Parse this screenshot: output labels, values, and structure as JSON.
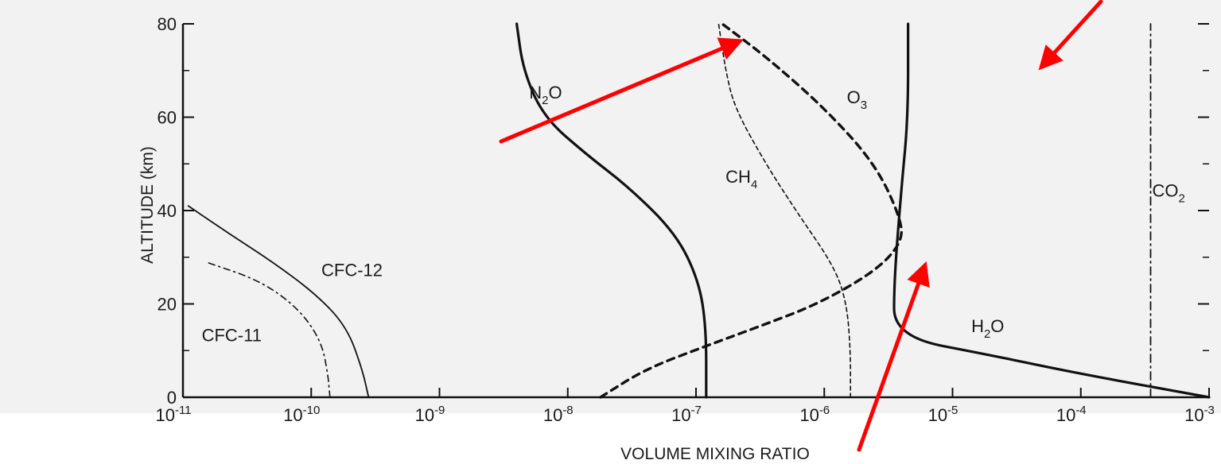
{
  "chart_data": {
    "type": "line",
    "xlabel": "VOLUME MIXING RATIO",
    "ylabel": "ALTITUDE (km)",
    "x_scale": "log",
    "xlim": [
      1e-11,
      0.001
    ],
    "ylim": [
      0,
      80
    ],
    "x_ticks": [
      {
        "value": 1e-11,
        "base": "10",
        "exp": "-11"
      },
      {
        "value": 1e-10,
        "base": "10",
        "exp": "-10"
      },
      {
        "value": 1e-09,
        "base": "10",
        "exp": "-9"
      },
      {
        "value": 1e-08,
        "base": "10",
        "exp": "-8"
      },
      {
        "value": 1e-07,
        "base": "10",
        "exp": "-7"
      },
      {
        "value": 1e-06,
        "base": "10",
        "exp": "-6"
      },
      {
        "value": 1e-05,
        "base": "10",
        "exp": "-5"
      },
      {
        "value": 0.0001,
        "base": "10",
        "exp": "-4"
      },
      {
        "value": 0.001,
        "base": "10",
        "exp": "-3"
      }
    ],
    "y_ticks": [
      "0",
      "20",
      "40",
      "60",
      "80"
    ],
    "y_tick_values": [
      0,
      20,
      40,
      60,
      80
    ],
    "grid": false,
    "series": [
      {
        "name": "N2O",
        "label_main": "N",
        "label_sub": "2",
        "label_tail": "O",
        "style": "solid-thick",
        "label_at": [
          5e-09,
          64
        ],
        "points": [
          [
            1.2e-07,
            0
          ],
          [
            1.2e-07,
            15
          ],
          [
            1.05e-07,
            25
          ],
          [
            7e-08,
            35
          ],
          [
            3e-08,
            45
          ],
          [
            1.4e-08,
            52
          ],
          [
            6.5e-09,
            60
          ],
          [
            4.5e-09,
            70
          ],
          [
            4e-09,
            80
          ]
        ]
      },
      {
        "name": "O3",
        "label_main": "O",
        "label_sub": "3",
        "label_tail": "",
        "style": "dashed-thick",
        "label_at": [
          1.5e-06,
          63
        ],
        "points": [
          [
            1.8e-08,
            0
          ],
          [
            4e-08,
            6
          ],
          [
            1.2e-07,
            11
          ],
          [
            3e-07,
            15
          ],
          [
            9e-07,
            20
          ],
          [
            2.5e-06,
            27
          ],
          [
            4e-06,
            33
          ],
          [
            4e-06,
            38
          ],
          [
            2.5e-06,
            50
          ],
          [
            1e-06,
            62
          ],
          [
            3.5e-07,
            73
          ],
          [
            1.6e-07,
            80
          ]
        ]
      },
      {
        "name": "CH4",
        "label_main": "CH",
        "label_sub": "4",
        "label_tail": "",
        "style": "dashed-thin",
        "label_at": [
          1.7e-07,
          46
        ],
        "points": [
          [
            1.6e-06,
            0
          ],
          [
            1.6e-06,
            10
          ],
          [
            1.5e-06,
            20
          ],
          [
            1.2e-06,
            28
          ],
          [
            6e-07,
            40
          ],
          [
            3.5e-07,
            50
          ],
          [
            2e-07,
            62
          ],
          [
            1.7e-07,
            70
          ],
          [
            1.5e-07,
            80
          ]
        ]
      },
      {
        "name": "H2O",
        "label_main": "H",
        "label_sub": "2",
        "label_tail": "O",
        "style": "solid-thick",
        "label_at": [
          1.4e-05,
          14
        ],
        "points": [
          [
            0.001,
            0
          ],
          [
            0.0001,
            5
          ],
          [
            2e-05,
            9
          ],
          [
            3.5e-06,
            13
          ],
          [
            3.5e-06,
            25
          ],
          [
            4e-06,
            45
          ],
          [
            4.5e-06,
            60
          ],
          [
            4.5e-06,
            80
          ]
        ]
      },
      {
        "name": "CO2",
        "label_main": "CO",
        "label_sub": "2",
        "label_tail": "",
        "style": "dash-dot",
        "label_at": [
          0.00036,
          43
        ],
        "points": [
          [
            0.00035,
            0
          ],
          [
            0.00035,
            80
          ]
        ]
      },
      {
        "name": "CFC-12",
        "label_main": "CFC-12",
        "label_sub": "",
        "label_tail": "",
        "style": "solid-thin",
        "label_at": [
          1.2e-10,
          26
        ],
        "points": [
          [
            2.8e-10,
            0
          ],
          [
            2.5e-10,
            6
          ],
          [
            1.9e-10,
            15
          ],
          [
            1.1e-10,
            22
          ],
          [
            5e-11,
            29
          ],
          [
            2.3e-11,
            35
          ],
          [
            1.1e-11,
            41
          ]
        ]
      },
      {
        "name": "CFC-11",
        "label_main": "CFC-11",
        "label_sub": "",
        "label_tail": "",
        "style": "dashdot-thin",
        "label_at": [
          1.4e-11,
          12
        ],
        "points": [
          [
            1.4e-10,
            0
          ],
          [
            1.35e-10,
            5
          ],
          [
            1.2e-10,
            12
          ],
          [
            8e-11,
            19
          ],
          [
            4e-11,
            25
          ],
          [
            1.5e-11,
            29
          ]
        ]
      }
    ]
  },
  "arrows": [
    {
      "name": "annotation-arrow-1",
      "color": "#ff0000"
    },
    {
      "name": "annotation-arrow-2",
      "color": "#ff0000"
    },
    {
      "name": "annotation-arrow-3",
      "color": "#ff0000"
    }
  ]
}
